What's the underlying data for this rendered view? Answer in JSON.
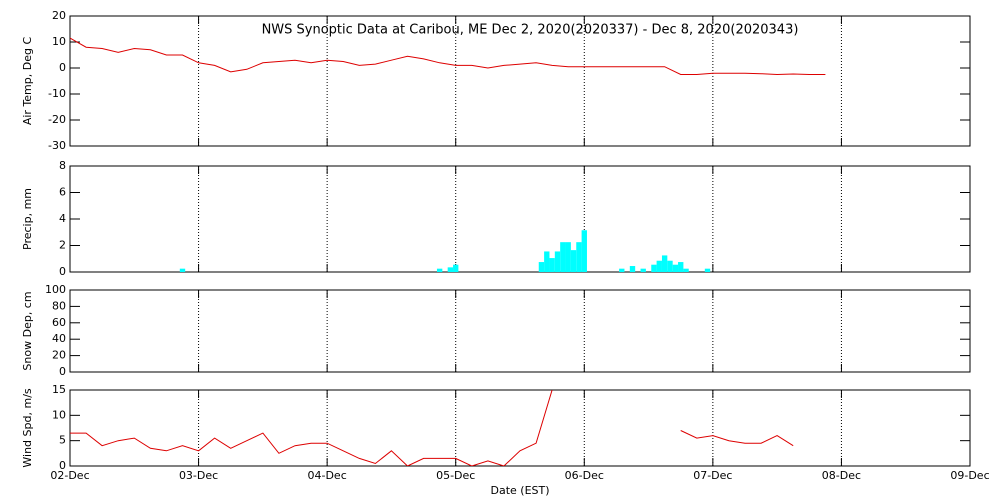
{
  "chart_data": [
    {
      "type": "line",
      "title": "NWS Synoptic Data at Caribou, ME   Dec  2, 2020(2020337) - Dec  8, 2020(2020343)",
      "ylabel": "Air Temp, Deg C",
      "color": "#dd0000",
      "xlim": [
        0,
        168
      ],
      "xticks": [
        0,
        24,
        48,
        72,
        96,
        120,
        144,
        168
      ],
      "ylim": [
        -30,
        20
      ],
      "yticks": [
        -30,
        -20,
        -10,
        0,
        10,
        20
      ],
      "x": [
        0,
        3,
        6,
        9,
        12,
        15,
        18,
        21,
        24,
        27,
        30,
        33,
        36,
        39,
        42,
        45,
        48,
        51,
        54,
        57,
        60,
        63,
        66,
        69,
        72,
        75,
        78,
        81,
        84,
        87,
        90,
        93,
        96,
        99,
        102,
        105,
        108,
        111,
        114,
        117,
        120,
        123,
        126,
        129,
        132,
        135,
        138,
        141
      ],
      "values": [
        11.5,
        8,
        7.5,
        6,
        7.5,
        7,
        5,
        5,
        2,
        1,
        -1.5,
        -0.5,
        2,
        2.5,
        3,
        2,
        3,
        2.5,
        1,
        1.5,
        3,
        4.5,
        3.5,
        2,
        1,
        1,
        0,
        1,
        1.5,
        2,
        1,
        0.5,
        0.5,
        0.5,
        0.5,
        0.5,
        0.5,
        0.5,
        -2.5,
        -2.5,
        -2,
        -2,
        -2,
        -2.2,
        -2.5,
        -2.3,
        -2.5,
        -2.5
      ]
    },
    {
      "type": "bar",
      "ylabel": "Precip, mm",
      "color": "#00ffff",
      "xlim": [
        0,
        168
      ],
      "xticks": [
        0,
        24,
        48,
        72,
        96,
        120,
        144,
        168
      ],
      "ylim": [
        0,
        8
      ],
      "yticks": [
        0,
        2,
        4,
        6,
        8
      ],
      "x": [
        21,
        69,
        71,
        72,
        88,
        89,
        90,
        91,
        92,
        93,
        94,
        95,
        96,
        103,
        105,
        107,
        109,
        110,
        111,
        112,
        113,
        114,
        115,
        119
      ],
      "values": [
        0.1,
        0.1,
        0.2,
        0.4,
        0.6,
        1.4,
        0.9,
        1.4,
        2.1,
        2.1,
        1.5,
        2.1,
        3.0,
        0.1,
        0.3,
        0.1,
        0.4,
        0.7,
        1.1,
        0.7,
        0.4,
        0.6,
        0.1,
        0.1
      ]
    },
    {
      "type": "line",
      "ylabel": "Snow Dep, cm",
      "color": "#dd0000",
      "xlim": [
        0,
        168
      ],
      "xticks": [
        0,
        24,
        48,
        72,
        96,
        120,
        144,
        168
      ],
      "ylim": [
        0,
        100
      ],
      "yticks": [
        0,
        20,
        40,
        60,
        80,
        100
      ],
      "x": [],
      "values": []
    },
    {
      "type": "line",
      "ylabel": "Wind Spd, m/s",
      "xlabel": "Date (EST)",
      "color": "#dd0000",
      "xlim": [
        0,
        168
      ],
      "xticks": [
        {
          "value": 0,
          "label": "02-Dec"
        },
        {
          "value": 24,
          "label": "03-Dec"
        },
        {
          "value": 48,
          "label": "04-Dec"
        },
        {
          "value": 72,
          "label": "05-Dec"
        },
        {
          "value": 96,
          "label": "06-Dec"
        },
        {
          "value": 120,
          "label": "07-Dec"
        },
        {
          "value": 144,
          "label": "08-Dec"
        },
        {
          "value": 168,
          "label": "09-Dec"
        }
      ],
      "ylim": [
        0,
        15
      ],
      "yticks": [
        0,
        5,
        10,
        15
      ],
      "x": [
        0,
        3,
        6,
        9,
        12,
        15,
        18,
        21,
        24,
        27,
        30,
        33,
        36,
        39,
        42,
        45,
        48,
        51,
        54,
        57,
        60,
        63,
        66,
        69,
        72,
        75,
        78,
        81,
        84,
        87,
        90,
        93,
        96,
        99,
        102,
        105,
        108,
        111,
        114,
        117,
        120,
        123,
        126,
        129,
        132,
        135
      ],
      "values": [
        6.5,
        6.5,
        4,
        5,
        5.5,
        3.5,
        3,
        4,
        3,
        5.5,
        3.5,
        5,
        6.5,
        2.5,
        4,
        4.5,
        4.5,
        3,
        1.5,
        0.5,
        3,
        0,
        1.5,
        1.5,
        1.5,
        0,
        1,
        0,
        3,
        4.5,
        15,
        null,
        null,
        null,
        null,
        null,
        null,
        null,
        7,
        5.5,
        6,
        5,
        4.5,
        4.5,
        6,
        4
      ]
    }
  ]
}
